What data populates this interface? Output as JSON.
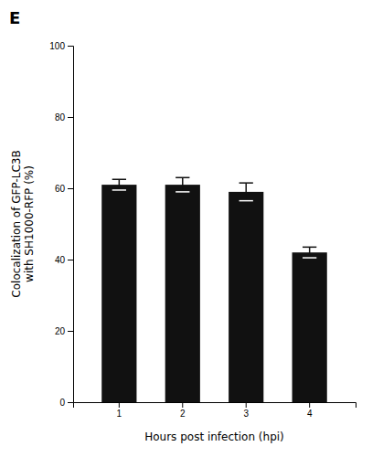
{
  "chart_data": {
    "type": "bar",
    "annotations": [
      "E"
    ],
    "xlabel": "Hours post infection (hpi)",
    "ylabel": "Colocalization of GFP-LC3B\nwith SH1000-RFP (%)",
    "categories": [
      "1",
      "2",
      "3",
      "4"
    ],
    "values": [
      61.0,
      61.0,
      59.0,
      42.0
    ],
    "errors": [
      1.5,
      2.0,
      2.5,
      1.5
    ],
    "color": "#111111",
    "ylim": [
      0,
      100
    ],
    "yticks": [
      0,
      20,
      40,
      60,
      80,
      100
    ],
    "grid": false
  }
}
